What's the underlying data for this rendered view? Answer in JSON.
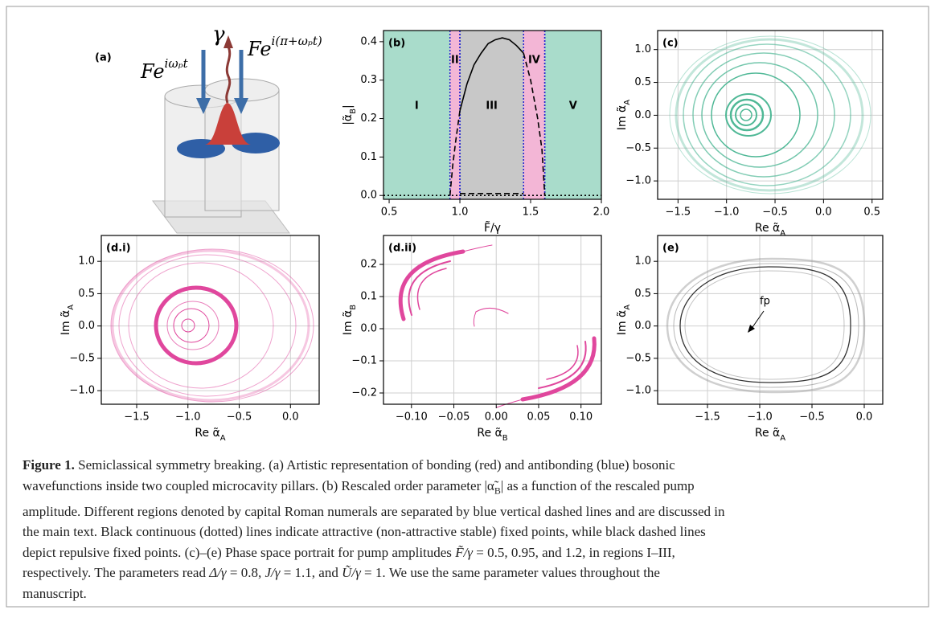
{
  "illustration": {
    "label": "(a)",
    "pump_left": {
      "base": "Fe",
      "sup": "iωₚt"
    },
    "loss": "γ",
    "pump_right": {
      "base": "Fe",
      "sup": "i(π+ωₚt)"
    }
  },
  "chart_data": [
    {
      "type": "line",
      "panel_label": "(b)",
      "xlabel": {
        "text": "F̃/γ"
      },
      "ylabel": {
        "text": "|α̃",
        "sub": "B",
        "after": "|"
      },
      "xlim": [
        0.46,
        2.0
      ],
      "ylim": [
        -0.01,
        0.429
      ],
      "xticks": [
        0.5,
        {
          "value": 1,
          "label": "1.0"
        },
        1.5,
        {
          "value": 2,
          "label": "2.0"
        }
      ],
      "yticks": [
        {
          "value": 0,
          "label": "0.0"
        },
        0.1,
        0.2,
        0.3,
        0.4
      ],
      "grid": false,
      "boundary_color": "#2020d0",
      "regions": [
        {
          "label": "I",
          "start": 0.46,
          "end": 0.93,
          "color": "#a9dccb"
        },
        {
          "label": "II",
          "start": 0.93,
          "end": 1.0,
          "color": "#f3b6d6"
        },
        {
          "label": "III",
          "start": 1.0,
          "end": 1.45,
          "color": "#c8c8c8"
        },
        {
          "label": "IV",
          "start": 1.45,
          "end": 1.6,
          "color": "#f3b6d6"
        },
        {
          "label": "V",
          "start": 1.6,
          "end": 2.0,
          "color": "#a9dccb"
        }
      ],
      "series": [
        {
          "color": "#000000",
          "style": "solid",
          "x": [
            1.0,
            1.05,
            1.1,
            1.15,
            1.2,
            1.25,
            1.3,
            1.35,
            1.4,
            1.45
          ],
          "values": [
            0.22,
            0.29,
            0.34,
            0.37,
            0.395,
            0.405,
            0.41,
            0.405,
            0.39,
            0.37
          ]
        },
        {
          "color": "#000000",
          "style": "dashed",
          "x": [
            0.93,
            0.95,
            0.97,
            1.0
          ],
          "values": [
            0,
            0.08,
            0.14,
            0.22
          ]
        },
        {
          "color": "#000000",
          "style": "dashed",
          "x": [
            1.45,
            1.5,
            1.55,
            1.58,
            1.6
          ],
          "values": [
            0.37,
            0.3,
            0.2,
            0.12,
            0
          ]
        },
        {
          "color": "#000000",
          "style": "dashed",
          "x": [
            1.0,
            1.45
          ],
          "values": [
            0.005,
            0.005
          ]
        },
        {
          "color": "#000000",
          "style": "dotted",
          "x": [
            0.46,
            2.0
          ],
          "values": [
            0,
            0
          ]
        }
      ]
    },
    {
      "type": "line",
      "panel_label": "(c)",
      "xlabel": {
        "text": "Re α̃",
        "sub": "A"
      },
      "ylabel": {
        "text": "Im α̃",
        "sub": "A"
      },
      "xlim": [
        -1.71,
        0.61
      ],
      "ylim": [
        -1.28,
        1.29
      ],
      "xticks": [
        {
          "value": -1.5,
          "label": "−1.5"
        },
        {
          "value": -1,
          "label": "−1.0"
        },
        {
          "value": -0.5,
          "label": "−0.5"
        },
        {
          "value": 0,
          "label": "0.0"
        },
        0.5
      ],
      "yticks": [
        {
          "value": -1,
          "label": "−1.0"
        },
        {
          "value": -0.5,
          "label": "−0.5"
        },
        {
          "value": 0,
          "label": "0.0"
        },
        0.5,
        {
          "value": 1,
          "label": "1.0"
        }
      ],
      "grid": true
    },
    {
      "type": "line",
      "panel_label": "(d.i)",
      "xlabel": {
        "text": "Re α̃",
        "sub": "A"
      },
      "ylabel": {
        "text": "Im α̃",
        "sub": "A"
      },
      "xlim": [
        -1.845,
        0.28
      ],
      "ylim": [
        -1.21,
        1.4
      ],
      "xticks": [
        {
          "value": -1.5,
          "label": "−1.5"
        },
        {
          "value": -1,
          "label": "−1.0"
        },
        {
          "value": -0.5,
          "label": "−0.5"
        },
        {
          "value": 0,
          "label": "0.0"
        }
      ],
      "yticks": [
        {
          "value": -1,
          "label": "−1.0"
        },
        {
          "value": -0.5,
          "label": "−0.5"
        },
        {
          "value": 0,
          "label": "0.0"
        },
        0.5,
        {
          "value": 1,
          "label": "1.0"
        }
      ],
      "grid": true
    },
    {
      "type": "line",
      "panel_label": "(d.ii)",
      "xlabel": {
        "text": "Re α̃",
        "sub": "B"
      },
      "ylabel": {
        "text": "Im α̃",
        "sub": "B"
      },
      "xlim": [
        -0.133,
        0.124
      ],
      "ylim": [
        -0.235,
        0.29
      ],
      "xticks": [
        {
          "value": -0.1,
          "label": "−0.10"
        },
        {
          "value": -0.05,
          "label": "−0.05"
        },
        {
          "value": 0,
          "label": "0.00"
        },
        0.05,
        {
          "value": 0.1,
          "label": "0.10"
        }
      ],
      "yticks": [
        {
          "value": -0.2,
          "label": "−0.2"
        },
        {
          "value": -0.1,
          "label": "−0.1"
        },
        {
          "value": 0,
          "label": "0.0"
        },
        0.1,
        0.2
      ],
      "grid": true
    },
    {
      "type": "line",
      "panel_label": "(e)",
      "xlabel": {
        "text": "Re α̃",
        "sub": "A"
      },
      "ylabel": {
        "text": "Im α̃",
        "sub": "A"
      },
      "xlim": [
        -1.977,
        0.177
      ],
      "ylim": [
        -1.21,
        1.4
      ],
      "xticks": [
        {
          "value": -1.5,
          "label": "−1.5"
        },
        {
          "value": -1,
          "label": "−1.0"
        },
        {
          "value": -0.5,
          "label": "−0.5"
        },
        {
          "value": 0,
          "label": "0.0"
        }
      ],
      "yticks": [
        {
          "value": -1,
          "label": "−1.0"
        },
        {
          "value": -0.5,
          "label": "−0.5"
        },
        {
          "value": 0,
          "label": "0.0"
        },
        0.5,
        {
          "value": 1,
          "label": "1.0"
        }
      ],
      "grid": true,
      "annotation": "fp"
    }
  ],
  "caption": {
    "lines": [
      [
        {
          "text": "Figure 1.",
          "style": "bold"
        },
        {
          "text": "  Semiclassical symmetry breaking. (a) Artistic representation of bonding (red) and antibonding (blue) bosonic",
          "style": "normal"
        }
      ],
      [
        {
          "text": "wavefunctions inside two coupled microcavity pillars. (b) Rescaled order parameter |α̃",
          "style": "normal"
        },
        {
          "text": "B",
          "style": "sub"
        },
        {
          "text": "| as a function of the rescaled pump",
          "style": "normal"
        }
      ],
      [
        {
          "text": "amplitude. Different regions denoted by capital Roman numerals are separated by blue vertical dashed lines and are discussed in",
          "style": "normal"
        }
      ],
      [
        {
          "text": "the main text. Black continuous (dotted) lines indicate attractive (non-attractive stable) fixed points, while black dashed lines",
          "style": "normal"
        }
      ],
      [
        {
          "text": "depict repulsive fixed points. (c)–(e) Phase space portrait for pump amplitudes ",
          "style": "normal"
        },
        {
          "text": "F̃/γ",
          "style": "italic"
        },
        {
          "text": " = 0.5, 0.95, and 1.2, in regions I–III,",
          "style": "normal"
        }
      ],
      [
        {
          "text": "respectively. The parameters read ",
          "style": "normal"
        },
        {
          "text": "Δ/γ",
          "style": "italic"
        },
        {
          "text": " = 0.8, ",
          "style": "normal"
        },
        {
          "text": "J/γ",
          "style": "italic"
        },
        {
          "text": " = 1.1, and ",
          "style": "normal"
        },
        {
          "text": "Ũ/γ",
          "style": "italic"
        },
        {
          "text": " = 1. We use the same parameter values throughout the",
          "style": "normal"
        }
      ],
      [
        {
          "text": "manuscript.",
          "style": "normal"
        }
      ]
    ]
  }
}
